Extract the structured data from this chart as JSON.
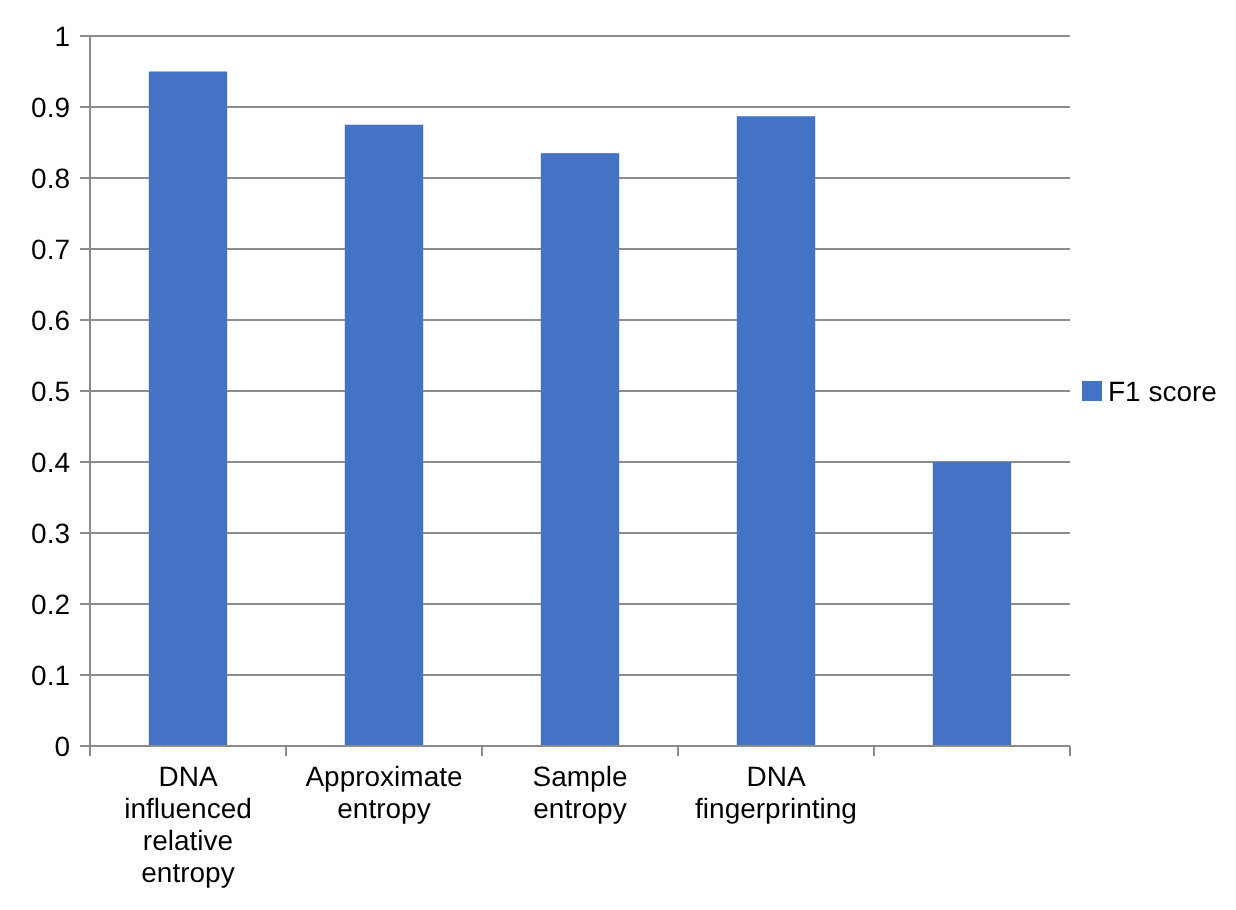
{
  "chart_data": {
    "type": "bar",
    "categories": [
      "DNA influenced relative entropy",
      "Approximate entropy",
      "Sample entropy",
      "DNA fingerprinting",
      null
    ],
    "series": [
      {
        "name": "F1 score",
        "color": "#4472c4",
        "values": [
          0.95,
          0.875,
          0.835,
          0.887,
          0.4
        ]
      }
    ],
    "ylim": [
      0,
      1
    ],
    "yticks": [
      0,
      0.1,
      0.2,
      0.3,
      0.4,
      0.5,
      0.6,
      0.7,
      0.8,
      0.9,
      1
    ],
    "grid": "y",
    "legend": "right"
  }
}
